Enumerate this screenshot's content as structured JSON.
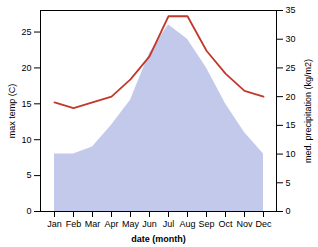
{
  "chart_data": {
    "type": "line",
    "categories": [
      "Jan",
      "Feb",
      "Mar",
      "Apr",
      "May",
      "Jun",
      "Jul",
      "Aug",
      "Sep",
      "Oct",
      "Nov",
      "Dec"
    ],
    "xlabel": "date (month)",
    "ylabel": "max temp (C)",
    "y2label": "med. precipitation (kg/m2)",
    "series": [
      {
        "type": "area",
        "color": "#b8bfe8",
        "values": [
          8,
          8,
          9,
          12,
          15.5,
          22,
          26,
          24,
          20,
          15,
          11,
          8
        ]
      },
      {
        "type": "line",
        "color": "#c0392b",
        "axis": "y2",
        "values": [
          19,
          18,
          19,
          20,
          23,
          27,
          34,
          34,
          28,
          24,
          21,
          20
        ]
      }
    ],
    "ylim": [
      0,
      28
    ],
    "yticks": [
      0,
      5,
      10,
      15,
      20,
      25
    ],
    "y2lim": [
      0,
      35
    ],
    "y2ticks": [
      0,
      5,
      10,
      15,
      20,
      25,
      30,
      35
    ]
  }
}
